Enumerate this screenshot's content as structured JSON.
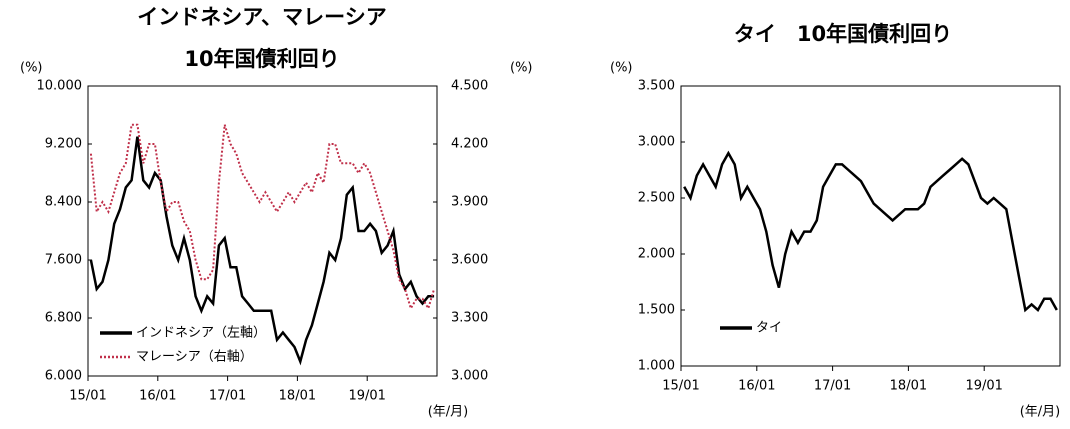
{
  "chart_data": [
    {
      "type": "line",
      "title": [
        "インドネシア、マレーシア",
        "10年国債利回り"
      ],
      "y_label": "(%)",
      "y2_label": "(%)",
      "x_label": "(年/月)",
      "categories": [
        "15/01",
        null,
        null,
        null,
        null,
        null,
        null,
        null,
        null,
        null,
        null,
        null,
        "16/01",
        null,
        null,
        null,
        null,
        null,
        null,
        null,
        null,
        null,
        null,
        null,
        "17/01",
        null,
        null,
        null,
        null,
        null,
        null,
        null,
        null,
        null,
        null,
        null,
        "18/01",
        null,
        null,
        null,
        null,
        null,
        null,
        null,
        null,
        null,
        null,
        null,
        "19/01",
        null,
        null,
        null,
        null,
        null,
        null,
        null,
        null,
        null,
        null,
        null
      ],
      "ylim": [
        6,
        10
      ],
      "yticks": [
        {
          "value": 6,
          "label": "6.000"
        },
        {
          "value": 6.8,
          "label": "6.800"
        },
        {
          "value": 7.6,
          "label": "7.600"
        },
        {
          "value": 8.4,
          "label": "8.400"
        },
        {
          "value": 9.2,
          "label": "9.200"
        },
        {
          "value": 10,
          "label": "10.000"
        }
      ],
      "y2lim": [
        3,
        4.5
      ],
      "y2ticks": [
        {
          "value": 3,
          "label": "3.000"
        },
        {
          "value": 3.3,
          "label": "3.300"
        },
        {
          "value": 3.6,
          "label": "3.600"
        },
        {
          "value": 3.9,
          "label": "3.900"
        },
        {
          "value": 4.2,
          "label": "4.200"
        },
        {
          "value": 4.5,
          "label": "4.500"
        }
      ],
      "legend": "lower left",
      "series": [
        {
          "name": "インドネシア（左軸）",
          "color": "#000000",
          "line_style": "solid",
          "values": [
            7.6,
            7.2,
            7.3,
            7.6,
            8.1,
            8.3,
            8.6,
            8.7,
            9.3,
            8.7,
            8.6,
            8.8,
            8.7,
            8.2,
            7.8,
            7.6,
            7.9,
            7.6,
            7.1,
            6.9,
            7.1,
            7.0,
            7.8,
            7.9,
            7.5,
            7.5,
            7.1,
            7.0,
            6.9,
            6.9,
            6.9,
            6.9,
            6.5,
            6.6,
            6.5,
            6.4,
            6.2,
            6.5,
            6.7,
            7.0,
            7.3,
            7.7,
            7.6,
            7.9,
            8.5,
            8.6,
            8.0,
            8.0,
            8.1,
            8.0,
            7.7,
            7.8,
            8.0,
            7.4,
            7.2,
            7.3,
            7.1,
            7.0,
            7.1,
            7.1
          ]
        },
        {
          "name": "マレーシア（右軸）",
          "color": "#c0304a",
          "line_style": "dotted",
          "axis": "y2",
          "values": [
            4.15,
            3.85,
            3.9,
            3.85,
            3.95,
            4.05,
            4.1,
            4.3,
            4.3,
            4.1,
            4.2,
            4.2,
            4.0,
            3.85,
            3.9,
            3.9,
            3.8,
            3.75,
            3.6,
            3.5,
            3.5,
            3.55,
            4.0,
            4.3,
            4.2,
            4.15,
            4.05,
            4.0,
            3.95,
            3.9,
            3.95,
            3.9,
            3.85,
            3.9,
            3.95,
            3.9,
            3.95,
            4.0,
            3.95,
            4.05,
            4.0,
            4.2,
            4.2,
            4.1,
            4.1,
            4.1,
            4.05,
            4.1,
            4.05,
            3.95,
            3.85,
            3.75,
            3.65,
            3.5,
            3.45,
            3.35,
            3.4,
            3.4,
            3.35,
            3.45
          ]
        }
      ]
    },
    {
      "type": "line",
      "title": [
        "タイ　10年国債利回り"
      ],
      "y_label": "(%)",
      "x_label": "(年/月)",
      "categories": [
        "15/01",
        null,
        null,
        null,
        null,
        null,
        null,
        null,
        null,
        null,
        null,
        null,
        "16/01",
        null,
        null,
        null,
        null,
        null,
        null,
        null,
        null,
        null,
        null,
        null,
        "17/01",
        null,
        null,
        null,
        null,
        null,
        null,
        null,
        null,
        null,
        null,
        null,
        "18/01",
        null,
        null,
        null,
        null,
        null,
        null,
        null,
        null,
        null,
        null,
        null,
        "19/01",
        null,
        null,
        null,
        null,
        null,
        null,
        null,
        null,
        null,
        null,
        null
      ],
      "ylim": [
        1,
        3.5
      ],
      "yticks": [
        {
          "value": 1,
          "label": "1.000"
        },
        {
          "value": 1.5,
          "label": "1.500"
        },
        {
          "value": 2,
          "label": "2.000"
        },
        {
          "value": 2.5,
          "label": "2.500"
        },
        {
          "value": 3,
          "label": "3.000"
        },
        {
          "value": 3.5,
          "label": "3.500"
        }
      ],
      "legend": "lower left",
      "series": [
        {
          "name": "タイ",
          "color": "#000000",
          "line_style": "solid",
          "values": [
            2.6,
            2.5,
            2.7,
            2.8,
            2.7,
            2.6,
            2.8,
            2.9,
            2.8,
            2.5,
            2.6,
            2.5,
            2.4,
            2.2,
            1.9,
            1.7,
            2.0,
            2.2,
            2.1,
            2.2,
            2.2,
            2.3,
            2.6,
            2.7,
            2.8,
            2.8,
            2.75,
            2.7,
            2.65,
            2.55,
            2.45,
            2.4,
            2.35,
            2.3,
            2.35,
            2.4,
            2.4,
            2.4,
            2.45,
            2.6,
            2.65,
            2.7,
            2.75,
            2.8,
            2.85,
            2.8,
            2.65,
            2.5,
            2.45,
            2.5,
            2.45,
            2.4,
            2.1,
            1.8,
            1.5,
            1.55,
            1.5,
            1.6,
            1.6,
            1.5
          ]
        }
      ]
    }
  ]
}
